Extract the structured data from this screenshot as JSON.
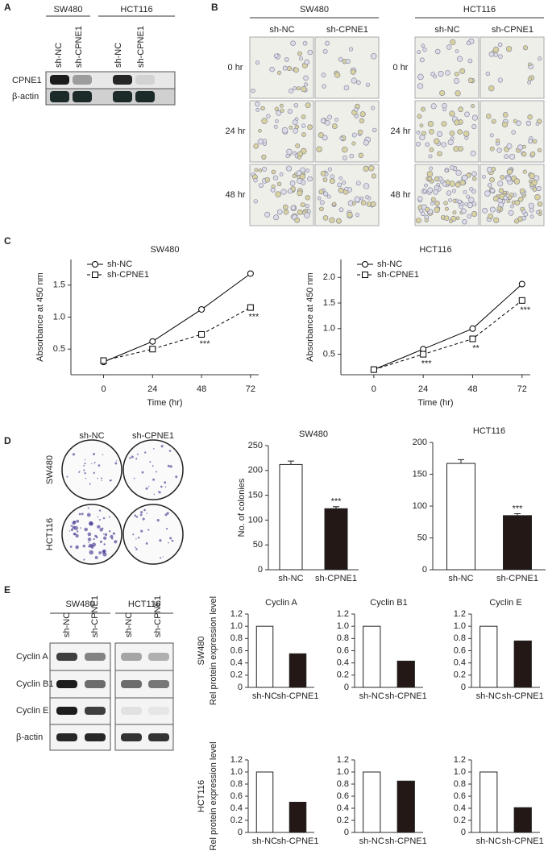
{
  "panel_labels": [
    "A",
    "B",
    "C",
    "D",
    "E"
  ],
  "panel_a": {
    "groups": [
      "SW480",
      "HCT116"
    ],
    "lanes": [
      "sh-NC",
      "sh-CPNE1",
      "sh-NC",
      "sh-CPNE1"
    ],
    "rows": [
      "CPNE1",
      "β-actin"
    ]
  },
  "panel_b": {
    "groups": [
      "SW480",
      "HCT116"
    ],
    "columns": [
      "sh-NC",
      "sh-CPNE1"
    ],
    "rows": [
      "0 hr",
      "24 hr",
      "48 hr"
    ]
  },
  "panel_d": {
    "columns": [
      "sh-NC",
      "sh-CPNE1"
    ],
    "rows": [
      "SW480",
      "HCT116"
    ]
  },
  "panel_e": {
    "groups": [
      "SW480",
      "HCT116"
    ],
    "lanes": [
      "sh-NC",
      "sh-CPNE1",
      "sh-NC",
      "sh-CPNE1"
    ],
    "rows": [
      "Cyclin A",
      "Cyclin B1",
      "Cyclin E",
      "β-actin"
    ],
    "row_groups": [
      "SW480",
      "HCT116"
    ]
  },
  "chart_data": [
    {
      "type": "line",
      "title": "SW480",
      "x": [
        0,
        24,
        48,
        72
      ],
      "xlim": [
        -16,
        76
      ],
      "xticks": [
        0,
        24,
        48,
        72
      ],
      "x_label": "Time (hr)",
      "ylim": [
        0.1,
        1.9
      ],
      "yticks": [
        0.5,
        {
          "value": 1,
          "label": "1.0"
        },
        1.5
      ],
      "y_label": "Absorbance at 450 nm",
      "legend": "upper left",
      "series": [
        {
          "name": "sh-NC",
          "color": "#000000",
          "linestyle": "solid",
          "marker": "circle",
          "values": [
            0.3,
            0.62,
            1.12,
            1.68
          ]
        },
        {
          "name": "sh-CPNE1",
          "color": "#000000",
          "linestyle": "dashed",
          "marker": "square",
          "values": [
            0.32,
            0.5,
            0.73,
            1.15
          ],
          "sig_labels": [
            null,
            null,
            "***",
            "***"
          ]
        }
      ]
    },
    {
      "type": "line",
      "title": "HCT116",
      "x": [
        0,
        24,
        48,
        72
      ],
      "xlim": [
        -16,
        76
      ],
      "xticks": [
        0,
        24,
        48,
        72
      ],
      "x_label": "Time (hr)",
      "ylim": [
        0.1,
        2.35
      ],
      "yticks": [
        0.5,
        {
          "value": 1,
          "label": "1.0"
        },
        1.5,
        {
          "value": 2,
          "label": "2.0"
        }
      ],
      "y_label": "Absorbance at 450 nm",
      "legend": "upper left",
      "series": [
        {
          "name": "sh-NC",
          "color": "#000000",
          "linestyle": "solid",
          "marker": "circle",
          "values": [
            0.2,
            0.6,
            1.0,
            1.87
          ]
        },
        {
          "name": "sh-CPNE1",
          "color": "#000000",
          "linestyle": "dashed",
          "marker": "square",
          "values": [
            0.2,
            0.5,
            0.8,
            1.55
          ],
          "sig_labels": [
            null,
            "***",
            "**",
            "***"
          ]
        }
      ]
    },
    {
      "type": "bar",
      "title": "SW480",
      "categories": [
        "sh-NC",
        "sh-CPNE1"
      ],
      "values": [
        212,
        123
      ],
      "errors": [
        7,
        4
      ],
      "colors": [
        "#ffffff",
        "#231815"
      ],
      "sig_labels": [
        null,
        "***"
      ],
      "ylim": [
        0,
        250
      ],
      "yticks": [
        0,
        50,
        100,
        150,
        200,
        250
      ],
      "y_label": "No. of colonies"
    },
    {
      "type": "bar",
      "title": "HCT116",
      "categories": [
        "sh-NC",
        "sh-CPNE1"
      ],
      "values": [
        167,
        85
      ],
      "errors": [
        6,
        3
      ],
      "colors": [
        "#ffffff",
        "#231815"
      ],
      "sig_labels": [
        null,
        "***"
      ],
      "ylim": [
        0,
        200
      ],
      "yticks": [
        0,
        50,
        100,
        150,
        200
      ]
    },
    {
      "type": "bar",
      "title": "Cyclin A",
      "categories": [
        "sh-NC",
        "sh-CPNE1"
      ],
      "values": [
        1,
        0.55
      ],
      "colors": [
        "#ffffff",
        "#231815"
      ],
      "ylim": [
        0,
        1.2
      ],
      "yticks": [
        0,
        0.2,
        0.4,
        0.6,
        0.8,
        {
          "value": 1,
          "label": "1.0"
        },
        1.2
      ],
      "y_label": "Rel protein expression level"
    },
    {
      "type": "bar",
      "title": "Cyclin B1",
      "categories": [
        "sh-NC",
        "sh-CPNE1"
      ],
      "values": [
        1,
        0.43
      ],
      "colors": [
        "#ffffff",
        "#231815"
      ],
      "ylim": [
        0,
        1.2
      ],
      "yticks": [
        0,
        0.2,
        0.4,
        0.6,
        0.8,
        {
          "value": 1,
          "label": "1.0"
        },
        1.2
      ]
    },
    {
      "type": "bar",
      "title": "Cyclin E",
      "categories": [
        "sh-NC",
        "sh-CPNE1"
      ],
      "values": [
        1,
        0.76
      ],
      "colors": [
        "#ffffff",
        "#231815"
      ],
      "ylim": [
        0,
        1.2
      ],
      "yticks": [
        0,
        0.2,
        0.4,
        0.6,
        0.8,
        {
          "value": 1,
          "label": "1.0"
        },
        1.2
      ]
    },
    {
      "type": "bar",
      "categories": [
        "sh-NC",
        "sh-CPNE1"
      ],
      "values": [
        1,
        0.5
      ],
      "colors": [
        "#ffffff",
        "#231815"
      ],
      "ylim": [
        0,
        1.2
      ],
      "yticks": [
        0,
        0.2,
        0.4,
        0.6,
        0.8,
        {
          "value": 1,
          "label": "1.0"
        },
        1.2
      ],
      "y_label": "Rel protein expression level"
    },
    {
      "type": "bar",
      "categories": [
        "sh-NC",
        "sh-CPNE1"
      ],
      "values": [
        1,
        0.85
      ],
      "colors": [
        "#ffffff",
        "#231815"
      ],
      "ylim": [
        0,
        1.2
      ],
      "yticks": [
        0,
        0.2,
        0.4,
        0.6,
        0.8,
        {
          "value": 1,
          "label": "1.0"
        },
        1.2
      ]
    },
    {
      "type": "bar",
      "categories": [
        "sh-NC",
        "sh-CPNE1"
      ],
      "values": [
        1,
        0.41
      ],
      "colors": [
        "#ffffff",
        "#231815"
      ],
      "ylim": [
        0,
        1.2
      ],
      "yticks": [
        0,
        0.2,
        0.4,
        0.6,
        0.8,
        {
          "value": 1,
          "label": "1.0"
        },
        1.2
      ]
    }
  ]
}
